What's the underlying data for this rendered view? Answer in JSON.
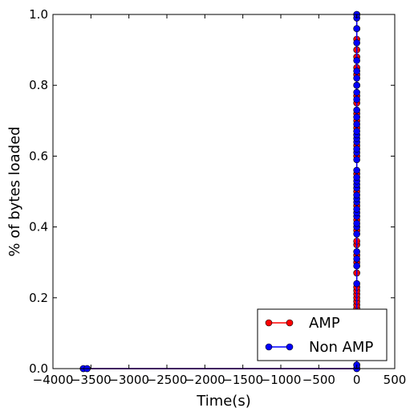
{
  "chart_data": {
    "type": "line",
    "xlabel": "Time(s)",
    "ylabel": "% of bytes loaded",
    "xlim": [
      -4000,
      500
    ],
    "ylim": [
      0,
      1
    ],
    "x_ticks": [
      -4000,
      -3500,
      -3000,
      -2500,
      -2000,
      -1500,
      -1000,
      -500,
      0,
      500
    ],
    "x_tick_labels": [
      "−4000",
      "−3500",
      "−3000",
      "−2500",
      "−2000",
      "−1500",
      "−1000",
      "−500",
      "0",
      "500"
    ],
    "y_ticks": [
      0,
      0.2,
      0.4,
      0.6,
      0.8,
      1.0
    ],
    "y_tick_labels": [
      "0.0",
      "0.2",
      "0.4",
      "0.6",
      "0.8",
      "1.0"
    ],
    "legend_position": "lower-right",
    "series": [
      {
        "name": "AMP",
        "color": "#ff0000",
        "marker": "circle",
        "points": [
          [
            -3600,
            0
          ],
          [
            -3550,
            0
          ],
          [
            0,
            0
          ],
          [
            0,
            0.01
          ],
          [
            0,
            0.17
          ],
          [
            0,
            0.18
          ],
          [
            0,
            0.19
          ],
          [
            0,
            0.2
          ],
          [
            0,
            0.21
          ],
          [
            0,
            0.22
          ],
          [
            0,
            0.23
          ],
          [
            0,
            0.27
          ],
          [
            0,
            0.3
          ],
          [
            0,
            0.32
          ],
          [
            0,
            0.35
          ],
          [
            0,
            0.36
          ],
          [
            0,
            0.39
          ],
          [
            0,
            0.42
          ],
          [
            0,
            0.46
          ],
          [
            0,
            0.5
          ],
          [
            0,
            0.55
          ],
          [
            0,
            0.6
          ],
          [
            0,
            0.63
          ],
          [
            0,
            0.68
          ],
          [
            0,
            0.7
          ],
          [
            0,
            0.72
          ],
          [
            0,
            0.75
          ],
          [
            0,
            0.77
          ],
          [
            0,
            0.8
          ],
          [
            0,
            0.83
          ],
          [
            0,
            0.85
          ],
          [
            0,
            0.88
          ],
          [
            0,
            0.9
          ],
          [
            0,
            0.93
          ],
          [
            0,
            0.96
          ],
          [
            0,
            1.0
          ]
        ]
      },
      {
        "name": "Non AMP",
        "color": "#0000ff",
        "marker": "circle",
        "points": [
          [
            -3600,
            0
          ],
          [
            -3550,
            0
          ],
          [
            0,
            0
          ],
          [
            0,
            0.01
          ],
          [
            0,
            0.24
          ],
          [
            0,
            0.29
          ],
          [
            0,
            0.31
          ],
          [
            0,
            0.33
          ],
          [
            0,
            0.38
          ],
          [
            0,
            0.4
          ],
          [
            0,
            0.41
          ],
          [
            0,
            0.43
          ],
          [
            0,
            0.44
          ],
          [
            0,
            0.45
          ],
          [
            0,
            0.47
          ],
          [
            0,
            0.48
          ],
          [
            0,
            0.49
          ],
          [
            0,
            0.51
          ],
          [
            0,
            0.52
          ],
          [
            0,
            0.53
          ],
          [
            0,
            0.54
          ],
          [
            0,
            0.56
          ],
          [
            0,
            0.59
          ],
          [
            0,
            0.61
          ],
          [
            0,
            0.62
          ],
          [
            0,
            0.64
          ],
          [
            0,
            0.65
          ],
          [
            0,
            0.66
          ],
          [
            0,
            0.67
          ],
          [
            0,
            0.69
          ],
          [
            0,
            0.71
          ],
          [
            0,
            0.73
          ],
          [
            0,
            0.76
          ],
          [
            0,
            0.78
          ],
          [
            0,
            0.8
          ],
          [
            0,
            0.82
          ],
          [
            0,
            0.84
          ],
          [
            0,
            0.87
          ],
          [
            0,
            0.92
          ],
          [
            0,
            0.96
          ],
          [
            0,
            0.99
          ],
          [
            0,
            1.0
          ]
        ]
      }
    ]
  }
}
